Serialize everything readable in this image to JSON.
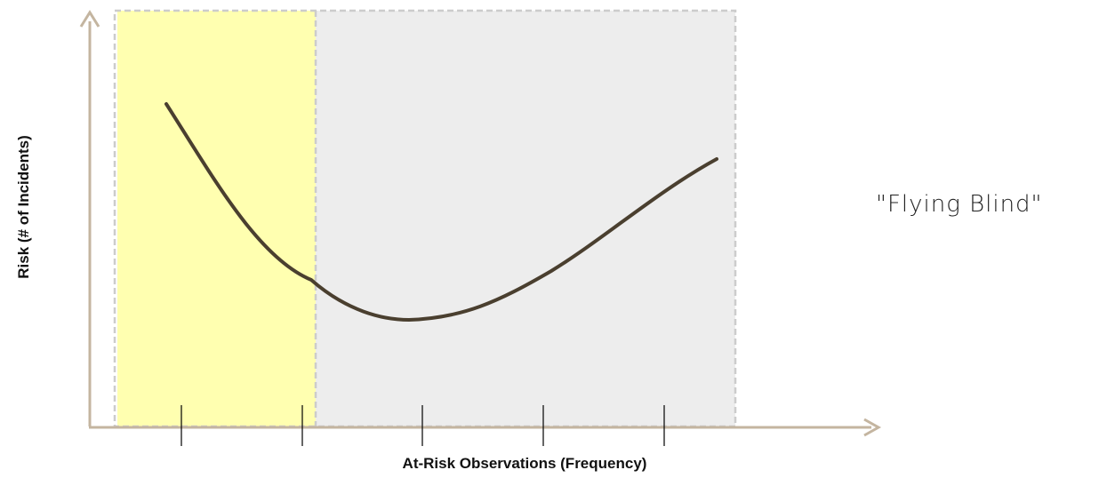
{
  "diagram": {
    "x_axis_label": "At-Risk Observations (Frequency)",
    "y_axis_label": "Risk (# of Incidents)",
    "annotation": "\"Flying Blind\"",
    "tick_count": 5,
    "colors": {
      "axis": "#c4b5a0",
      "curve": "#4a3f2f",
      "highlight_zone": "#ffffb0",
      "shaded_zone": "#ededed",
      "zone_border": "#cccccc",
      "tick": "#000000"
    }
  }
}
